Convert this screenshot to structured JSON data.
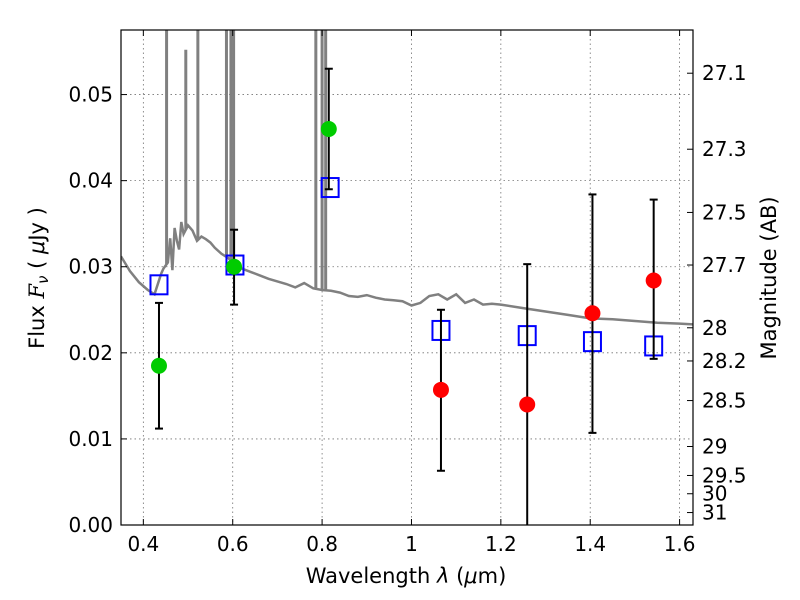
{
  "chart_data": {
    "type": "scatter",
    "title": "",
    "xlabel": "Wavelength  λ (μm)",
    "ylabel": "Flux  F_ν  ( μJy )",
    "ylabel_parts": {
      "a": "Flux ",
      "b": "F",
      "c": "ν",
      "d": "  ( ",
      "e": "μ",
      "f": "Jy )"
    },
    "xlabel_parts": {
      "a": "Wavelength  ",
      "b": "λ",
      "c": " (",
      "d": "μ",
      "e": "m)"
    },
    "y2label": "Magnitude (AB)",
    "xlim": [
      0.35,
      1.63
    ],
    "ylim": [
      0.0,
      0.0575
    ],
    "grid": true,
    "x_ticks": [
      "0.4",
      "0.6",
      "0.8",
      "1",
      "1.2",
      "1.4",
      "1.6"
    ],
    "x_tick_values": [
      0.4,
      0.6,
      0.8,
      1.0,
      1.2,
      1.4,
      1.6
    ],
    "y_ticks": [
      "0.00",
      "0.01",
      "0.02",
      "0.03",
      "0.04",
      "0.05"
    ],
    "y_tick_values": [
      0.0,
      0.01,
      0.02,
      0.03,
      0.04,
      0.05
    ],
    "y2_ticks": [
      "27.1",
      "27.3",
      "27.5",
      "27.7",
      "28",
      "28.2",
      "28.5",
      "29",
      "29.5",
      "30",
      "31"
    ],
    "y2_tick_values": [
      27.1,
      27.3,
      27.5,
      27.7,
      28.0,
      28.2,
      28.5,
      29.0,
      29.5,
      30.0,
      31.0
    ],
    "template_spectrum": {
      "name": "",
      "color": "#808080",
      "x": [
        0.35,
        0.37,
        0.39,
        0.41,
        0.425,
        0.44,
        0.445,
        0.455,
        0.46,
        0.465,
        0.47,
        0.475,
        0.48,
        0.485,
        0.49,
        0.5,
        0.51,
        0.52,
        0.53,
        0.54,
        0.55,
        0.56,
        0.575,
        0.59,
        0.6,
        0.62,
        0.64,
        0.66,
        0.68,
        0.7,
        0.72,
        0.74,
        0.76,
        0.78,
        0.8,
        0.82,
        0.84,
        0.86,
        0.88,
        0.9,
        0.92,
        0.94,
        0.96,
        0.98,
        1.0,
        1.02,
        1.04,
        1.06,
        1.08,
        1.1,
        1.12,
        1.14,
        1.16,
        1.18,
        1.2,
        1.25,
        1.3,
        1.35,
        1.4,
        1.45,
        1.5,
        1.55,
        1.6,
        1.63
      ],
      "y": [
        0.0312,
        0.0295,
        0.0282,
        0.0273,
        0.0268,
        0.0292,
        0.0298,
        0.0305,
        0.0333,
        0.0296,
        0.0345,
        0.033,
        0.032,
        0.0352,
        0.0338,
        0.0348,
        0.0342,
        0.033,
        0.0335,
        0.0332,
        0.0328,
        0.0322,
        0.0315,
        0.031,
        0.0305,
        0.0298,
        0.0294,
        0.029,
        0.0286,
        0.0283,
        0.028,
        0.0276,
        0.0281,
        0.0275,
        0.0273,
        0.0272,
        0.027,
        0.0266,
        0.0265,
        0.0267,
        0.0264,
        0.0262,
        0.0261,
        0.026,
        0.0255,
        0.0258,
        0.0266,
        0.0268,
        0.0262,
        0.0268,
        0.0258,
        0.0262,
        0.0256,
        0.0257,
        0.0256,
        0.0252,
        0.0248,
        0.0244,
        0.024,
        0.0239,
        0.0237,
        0.0235,
        0.0234,
        0.0233
      ],
      "spikes": [
        {
          "x": 0.452,
          "y": 0.058
        },
        {
          "x": 0.495,
          "y": 0.0552
        },
        {
          "x": 0.522,
          "y": 0.058
        },
        {
          "x": 0.586,
          "y": 0.058
        },
        {
          "x": 0.596,
          "y": 0.058
        },
        {
          "x": 0.602,
          "y": 0.058
        },
        {
          "x": 0.786,
          "y": 0.058
        },
        {
          "x": 0.8,
          "y": 0.058
        },
        {
          "x": 0.808,
          "y": 0.058
        }
      ]
    },
    "series": [
      {
        "name": "",
        "marker": "square-open",
        "color": "#0000ff",
        "x": [
          0.435,
          0.605,
          0.818,
          1.066,
          1.259,
          1.405,
          1.542
        ],
        "y": [
          0.0279,
          0.0302,
          0.0392,
          0.0226,
          0.022,
          0.0213,
          0.0208
        ]
      },
      {
        "name": "",
        "marker": "circle",
        "color": "#00cc00",
        "x": [
          0.435,
          0.603,
          0.815
        ],
        "y": [
          0.0185,
          0.03,
          0.046
        ],
        "err_low": [
          0.0112,
          0.0256,
          0.039
        ],
        "err_high": [
          0.0258,
          0.0343,
          0.053
        ]
      },
      {
        "name": "",
        "marker": "circle",
        "color": "#ff0000",
        "x": [
          1.066,
          1.259,
          1.405,
          1.542
        ],
        "y": [
          0.0157,
          0.014,
          0.0246,
          0.0284
        ],
        "err_low": [
          0.0063,
          -0.002,
          0.0107,
          0.0193
        ],
        "err_high": [
          0.025,
          0.0303,
          0.0384,
          0.0378
        ]
      }
    ]
  }
}
